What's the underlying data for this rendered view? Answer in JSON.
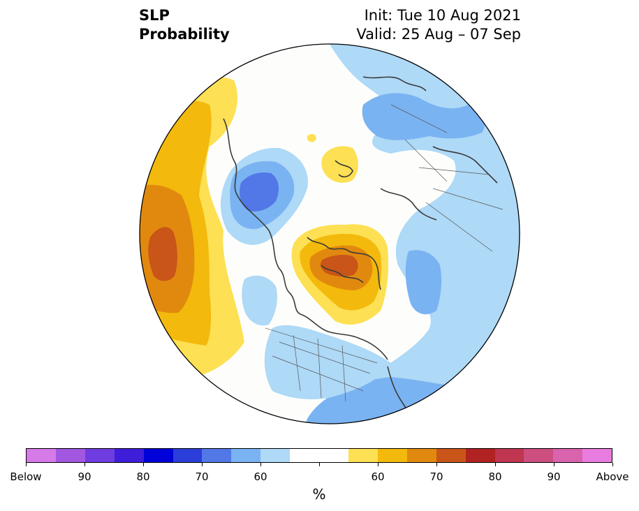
{
  "title": {
    "variable": "SLP",
    "kind": "Probability",
    "init": "Init: Tue 10 Aug 2021",
    "valid": "Valid: 25 Aug – 07 Sep"
  },
  "map": {
    "projection": "north-polar stereographic",
    "features": [
      "coastlines",
      "country borders",
      "US state borders"
    ]
  },
  "colorbar": {
    "colors": [
      "#d67ae8",
      "#a157e0",
      "#6f3ce0",
      "#3e1ed9",
      "#0000d8",
      "#2b3ed9",
      "#5277e6",
      "#7ab3f2",
      "#aed9f7",
      "#ffffff",
      "#ffffff",
      "#fde053",
      "#f3b90c",
      "#e1890f",
      "#c95518",
      "#b12322",
      "#c03550",
      "#cc4f80",
      "#da63ad",
      "#e97ce0"
    ],
    "labels": [
      "Below",
      "90",
      "80",
      "70",
      "60",
      "60",
      "70",
      "80",
      "90",
      "Above"
    ],
    "unit": "%"
  }
}
